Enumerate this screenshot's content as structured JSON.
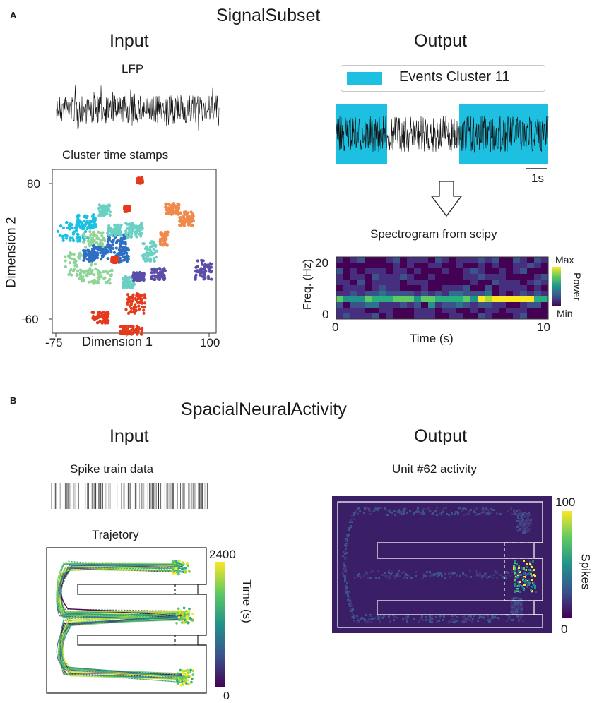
{
  "panel_a": {
    "label": "A",
    "title": "SignalSubset",
    "input": {
      "heading": "Input",
      "lfp_label": "LFP",
      "cluster_label": "Cluster time stamps",
      "scatter": {
        "xlabel": "Dimension 1",
        "ylabel": "Dimension 2",
        "x_ticks": [
          "-75",
          "100"
        ],
        "y_ticks": [
          "80",
          "-60"
        ]
      }
    },
    "output": {
      "heading": "Output",
      "legend_label": "Events Cluster 11",
      "legend_color": "#1ec0e2",
      "scalebar_label": "1s",
      "spectrogram_title": "Spectrogram from scipy",
      "spectrogram": {
        "ylabel": "Freq. (Hz)",
        "xlabel": "Time (s)",
        "y_ticks": [
          "20",
          "0"
        ],
        "x_ticks": [
          "0",
          "10"
        ],
        "cbar_label": "Power",
        "cbar_max": "Max",
        "cbar_min": "Min"
      }
    }
  },
  "panel_b": {
    "label": "B",
    "title": "SpacialNeuralActivity",
    "input": {
      "heading": "Input",
      "spike_label": "Spike train data",
      "trajectory_label": "Trajetory",
      "cbar_label": "Time (s)",
      "cbar_max": "2400",
      "cbar_min": "0"
    },
    "output": {
      "heading": "Output",
      "unit_label": "Unit #62 activity",
      "cbar_label": "Spikes",
      "cbar_max": "100",
      "cbar_min": "0"
    }
  },
  "colors": {
    "viridis_dark": "#440154",
    "viridis_bg": "#3b1f66",
    "viridis_yellow": "#fde725",
    "cluster_palette": [
      "#1ec0e2",
      "#8fd59a",
      "#2e6fc4",
      "#e63a1c",
      "#f08a4b",
      "#6ad0c4",
      "#5b4ea8"
    ]
  }
}
